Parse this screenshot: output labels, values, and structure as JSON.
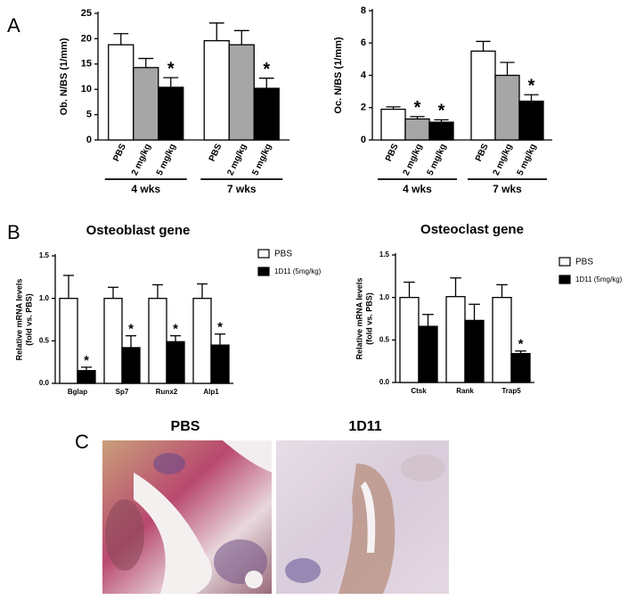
{
  "panel_labels": [
    "A",
    "B",
    "C"
  ],
  "chart_data": [
    {
      "type": "bar",
      "ylabel": "Ob. N/BS (1/mm)",
      "categories": [
        "4 wks",
        "7 wks"
      ],
      "series": [
        {
          "name": "PBS",
          "color": "#ffffff",
          "values": [
            18.8,
            19.6
          ],
          "errors": [
            2.2,
            3.5
          ],
          "stars": [
            null,
            null
          ]
        },
        {
          "name": "2 mg/kg",
          "color": "#a6a6a6",
          "values": [
            14.3,
            18.8
          ],
          "errors": [
            1.8,
            2.8
          ],
          "stars": [
            null,
            null
          ]
        },
        {
          "name": "5 mg/kg",
          "color": "#000000",
          "values": [
            10.4,
            10.2
          ],
          "errors": [
            1.9,
            2.0
          ],
          "stars": [
            "*",
            "*"
          ]
        }
      ],
      "ylim": [
        0,
        25
      ],
      "yticks": [
        0,
        5,
        10,
        15,
        20,
        25
      ],
      "grid": false,
      "legend": false
    },
    {
      "type": "bar",
      "ylabel": "Oc. N/BS (1/mm)",
      "categories": [
        "4 wks",
        "7 wks"
      ],
      "series": [
        {
          "name": "PBS",
          "color": "#ffffff",
          "values": [
            1.9,
            5.5
          ],
          "errors": [
            0.15,
            0.6
          ],
          "stars": [
            null,
            null
          ]
        },
        {
          "name": "2 mg/kg",
          "color": "#a6a6a6",
          "values": [
            1.3,
            4.0
          ],
          "errors": [
            0.15,
            0.8
          ],
          "stars": [
            "*",
            null
          ]
        },
        {
          "name": "5 mg/kg",
          "color": "#000000",
          "values": [
            1.1,
            2.4
          ],
          "errors": [
            0.15,
            0.4
          ],
          "stars": [
            "*",
            "*"
          ]
        }
      ],
      "ylim": [
        0,
        8
      ],
      "yticks": [
        0,
        2,
        4,
        6,
        8
      ],
      "grid": false,
      "legend": false
    },
    {
      "type": "bar",
      "title": "Osteoblast gene",
      "ylabel": [
        "Relative mRNA levels",
        "(fold vs. PBS)"
      ],
      "categories": [
        "Bglap",
        "Sp7",
        "Runx2",
        "Alp1"
      ],
      "series": [
        {
          "name": "PBS",
          "color": "#ffffff",
          "values": [
            1.0,
            1.0,
            1.0,
            1.0
          ],
          "errors": [
            0.27,
            0.13,
            0.16,
            0.17
          ],
          "stars": [
            null,
            null,
            null,
            null
          ]
        },
        {
          "name": "1D11 (5mg/kg)",
          "color": "#000000",
          "values": [
            0.15,
            0.42,
            0.49,
            0.45
          ],
          "errors": [
            0.04,
            0.14,
            0.07,
            0.13
          ],
          "stars": [
            "*",
            "*",
            "*",
            "*"
          ]
        }
      ],
      "ylim": [
        0,
        1.5
      ],
      "yticks": [
        {
          "value": 0,
          "label": "0.0"
        },
        0.5,
        {
          "value": 1,
          "label": "1.0"
        },
        1.5
      ],
      "grid": false,
      "legend": "right"
    },
    {
      "type": "bar",
      "title": "Osteoclast gene",
      "ylabel": [
        "Relative mRNA levels",
        "(fold vs. PBS)"
      ],
      "categories": [
        "Ctsk",
        "Rank",
        "Trap5"
      ],
      "series": [
        {
          "name": "PBS",
          "color": "#ffffff",
          "values": [
            1.0,
            1.01,
            1.0
          ],
          "errors": [
            0.18,
            0.22,
            0.15
          ],
          "stars": [
            null,
            null,
            null
          ]
        },
        {
          "name": "1D11 (5mg/kg)",
          "color": "#000000",
          "values": [
            0.66,
            0.73,
            0.34
          ],
          "errors": [
            0.14,
            0.19,
            0.03
          ],
          "stars": [
            null,
            null,
            "*"
          ]
        }
      ],
      "ylim": [
        0,
        1.5
      ],
      "yticks": [
        {
          "value": 0,
          "label": "0.0"
        },
        0.5,
        {
          "value": 1,
          "label": "1.0"
        },
        1.5
      ],
      "grid": false,
      "legend": "right"
    }
  ],
  "images": {
    "labels": [
      "PBS",
      "1D11"
    ]
  }
}
